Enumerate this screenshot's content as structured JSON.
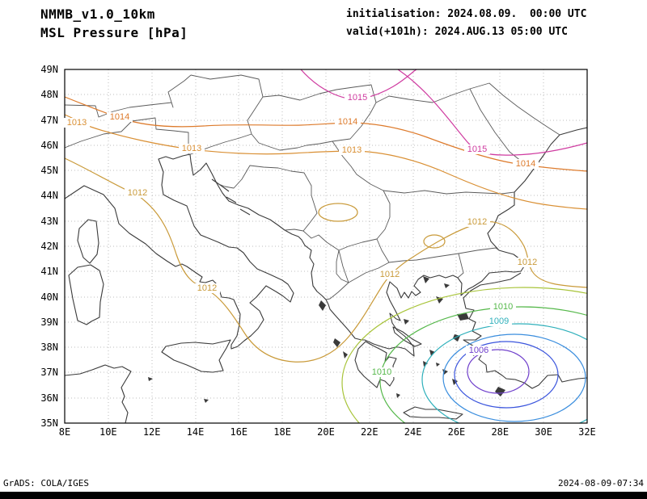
{
  "header": {
    "model": "NMMB_v1.0_10km",
    "field": "MSL Pressure [hPa]",
    "init": "initialisation: 2024.08.09.  00:00 UTC",
    "valid": "valid(+101h): 2024.AUG.13 05:00 UTC"
  },
  "footer": {
    "credit": "GrADS: COLA/IGES",
    "timestamp": "2024-08-09-07:34"
  },
  "axes": {
    "lat_ticks": [
      "49N",
      "48N",
      "47N",
      "46N",
      "45N",
      "44N",
      "43N",
      "42N",
      "41N",
      "40N",
      "39N",
      "38N",
      "37N",
      "36N",
      "35N"
    ],
    "lon_ticks": [
      "8E",
      "10E",
      "12E",
      "14E",
      "16E",
      "18E",
      "20E",
      "22E",
      "24E",
      "26E",
      "28E",
      "30E",
      "32E"
    ]
  },
  "isobars": {
    "unit": "hPa",
    "levels": [
      1006,
      1007,
      1008,
      1009,
      1010,
      1011,
      1012,
      1013,
      1014,
      1015
    ]
  },
  "contour_labels": [
    {
      "text": "1013"
    },
    {
      "text": "1014"
    },
    {
      "text": "1013"
    },
    {
      "text": "1015"
    },
    {
      "text": "1014"
    },
    {
      "text": "1013"
    },
    {
      "text": "1015"
    },
    {
      "text": "1014"
    },
    {
      "text": "1012"
    },
    {
      "text": "1012"
    },
    {
      "text": "1012"
    },
    {
      "text": "1012"
    },
    {
      "text": "1012"
    },
    {
      "text": "1010"
    },
    {
      "text": "1009"
    },
    {
      "text": "1006"
    },
    {
      "text": "1010"
    }
  ],
  "colors": {
    "p1006": "#7040cc",
    "p1007": "#3b55dd",
    "p1008": "#3b8ede",
    "p1009": "#2fb0bb",
    "p1010": "#55b84a",
    "p1011": "#a8c43a",
    "p1012": "#c99a39",
    "p1013": "#d98f33",
    "p1014": "#dd7a2b",
    "p1015": "#cf3ba0",
    "coast": "#3a3a3a",
    "border": "#5a5a5a",
    "grid": "#bcbcbc",
    "frame": "#000000",
    "bar": "#000000",
    "text": "#000000"
  }
}
